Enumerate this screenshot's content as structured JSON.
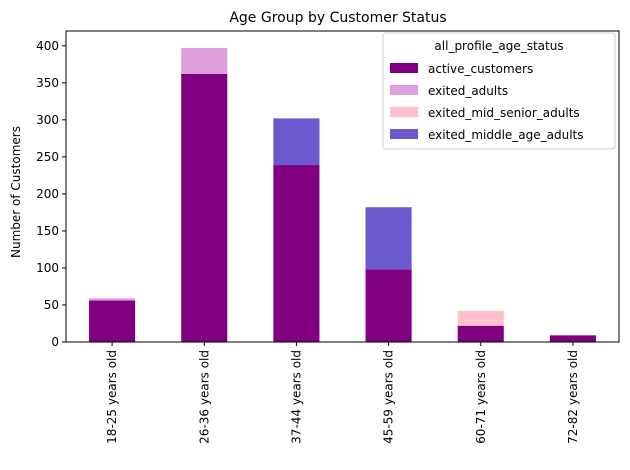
{
  "chart_data": {
    "type": "bar",
    "stacked": true,
    "title": "Age Group by Customer Status",
    "xlabel": "",
    "ylabel": "Number of Customers",
    "ylim": [
      0,
      420
    ],
    "yticks": [
      0,
      50,
      100,
      150,
      200,
      250,
      300,
      350,
      400
    ],
    "categories": [
      "18-25 years old",
      "26-36 years old",
      "37-44 years old",
      "45-59 years old",
      "60-71 years old",
      "72-82 years old"
    ],
    "legend_title": "all_profile_age_status",
    "legend_position": "top-right",
    "grid": false,
    "series": [
      {
        "name": "active_customers",
        "color": "#800080",
        "values": [
          56,
          362,
          239,
          98,
          22,
          9
        ]
      },
      {
        "name": "exited_adults",
        "color": "#dda0dd",
        "values": [
          3,
          35,
          0,
          0,
          0,
          0
        ]
      },
      {
        "name": "exited_mid_senior_adults",
        "color": "#ffc0cb",
        "values": [
          0,
          0,
          0,
          0,
          20,
          0
        ]
      },
      {
        "name": "exited_middle_age_adults",
        "color": "#6a5acd",
        "values": [
          0,
          0,
          63,
          84,
          0,
          0
        ]
      }
    ]
  }
}
